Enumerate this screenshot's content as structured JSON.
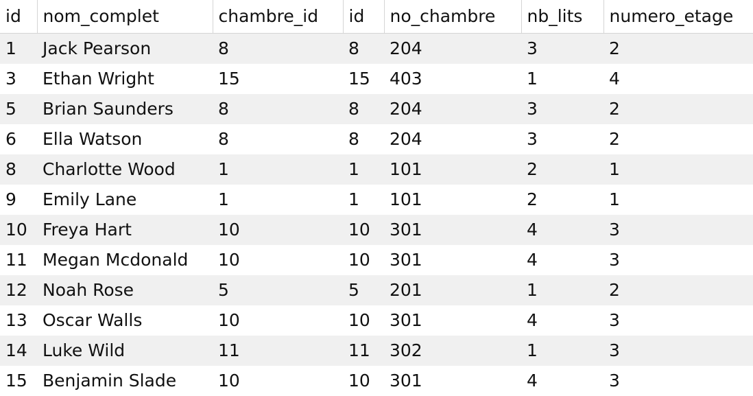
{
  "grid": {
    "columns": [
      "id",
      "nom_complet",
      "chambre_id",
      "id",
      "no_chambre",
      "nb_lits",
      "numero_etage"
    ],
    "rows": [
      [
        "1",
        "Jack Pearson",
        "8",
        "8",
        "204",
        "3",
        "2"
      ],
      [
        "3",
        "Ethan Wright",
        "15",
        "15",
        "403",
        "1",
        "4"
      ],
      [
        "5",
        "Brian Saunders",
        "8",
        "8",
        "204",
        "3",
        "2"
      ],
      [
        "6",
        "Ella Watson",
        "8",
        "8",
        "204",
        "3",
        "2"
      ],
      [
        "8",
        "Charlotte Wood",
        "1",
        "1",
        "101",
        "2",
        "1"
      ],
      [
        "9",
        "Emily Lane",
        "1",
        "1",
        "101",
        "2",
        "1"
      ],
      [
        "10",
        "Freya Hart",
        "10",
        "10",
        "301",
        "4",
        "3"
      ],
      [
        "11",
        "Megan Mcdonald",
        "10",
        "10",
        "301",
        "4",
        "3"
      ],
      [
        "12",
        "Noah Rose",
        "5",
        "5",
        "201",
        "1",
        "2"
      ],
      [
        "13",
        "Oscar Walls",
        "10",
        "10",
        "301",
        "4",
        "3"
      ],
      [
        "14",
        "Luke Wild",
        "11",
        "11",
        "302",
        "1",
        "3"
      ],
      [
        "15",
        "Benjamin Slade",
        "10",
        "10",
        "301",
        "4",
        "3"
      ]
    ]
  },
  "colors": {
    "row_stripe": "#f0f0f0",
    "grid_line": "#d4d4d4",
    "text": "#111111"
  }
}
